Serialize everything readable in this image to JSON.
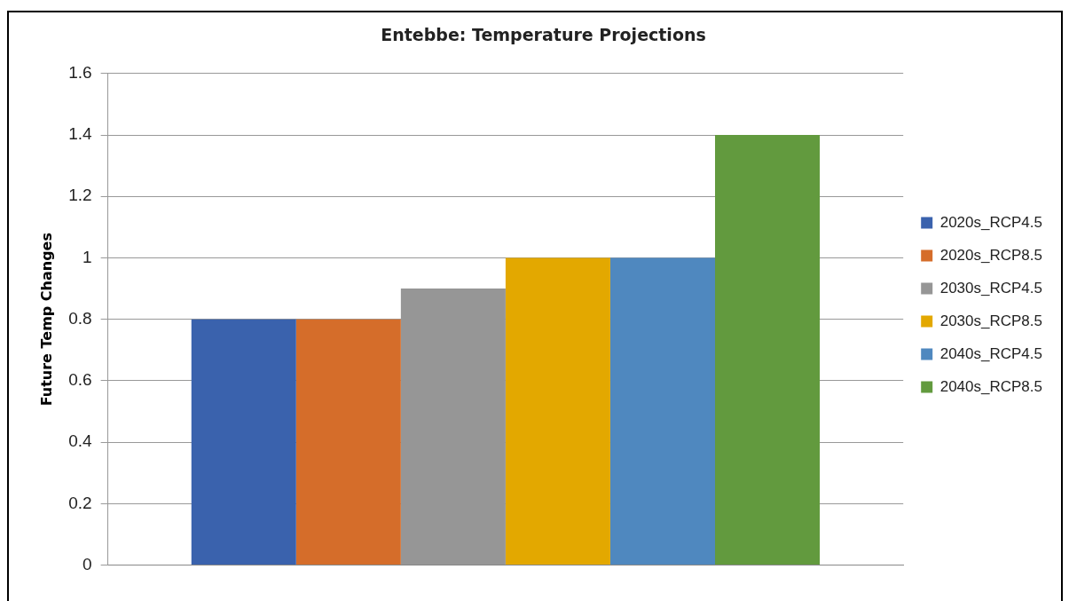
{
  "chart_data": {
    "type": "bar",
    "title": "Entebbe: Temperature Projections",
    "ylabel": "Future Temp Changes",
    "categories": [
      null
    ],
    "series": [
      {
        "name": "2020s_RCP4.5",
        "color": "#3a62ad",
        "values": [
          0.8
        ]
      },
      {
        "name": "2020s_RCP8.5",
        "color": "#d56d2a",
        "values": [
          0.8
        ]
      },
      {
        "name": "2030s_RCP4.5",
        "color": "#969696",
        "values": [
          0.9
        ]
      },
      {
        "name": "2030s_RCP8.5",
        "color": "#e3a800",
        "values": [
          1.0
        ]
      },
      {
        "name": "2040s_RCP4.5",
        "color": "#4f88bf",
        "values": [
          1.0
        ]
      },
      {
        "name": "2040s_RCP8.5",
        "color": "#629a3e",
        "values": [
          1.4
        ]
      }
    ],
    "ylim": [
      0,
      1.6
    ],
    "yticks": [
      0,
      0.2,
      0.4,
      0.6,
      0.8,
      1,
      1.2,
      1.4,
      1.6
    ],
    "grid": "y",
    "legend": "right"
  }
}
